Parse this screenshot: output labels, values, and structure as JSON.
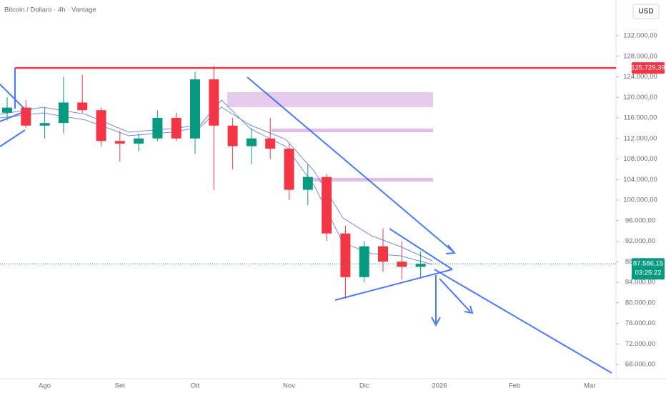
{
  "chart_data": {
    "type": "candlestick",
    "title": "Bitcoin / Dollaro · 4h · Vantage",
    "currency": "USD",
    "categories": [
      null,
      null,
      "Ago",
      null,
      null,
      null,
      "Set",
      null,
      null,
      null,
      "Ott",
      null,
      null,
      null,
      null,
      "Nov",
      null,
      null,
      null,
      "Dic",
      null,
      null,
      null,
      "2026",
      null,
      null,
      null,
      "Feb",
      null,
      null,
      null,
      "Mar",
      null
    ],
    "open": [
      117000,
      118000,
      114500,
      115000,
      119000,
      117500,
      111500,
      111000,
      112000,
      116000,
      112000,
      123500,
      114500,
      110500,
      112000,
      110000,
      102000,
      104500,
      93500,
      85000,
      91000,
      88000,
      87000,
      null,
      null,
      null,
      null,
      null,
      null,
      null,
      null,
      null,
      null
    ],
    "high": [
      120000,
      119500,
      118000,
      124000,
      124400,
      118000,
      113500,
      113000,
      117500,
      117000,
      125000,
      126200,
      116000,
      114000,
      116000,
      111000,
      107000,
      105000,
      95000,
      92000,
      94500,
      92000,
      90000,
      null,
      null,
      null,
      null,
      null,
      null,
      null,
      null,
      null,
      null
    ],
    "low": [
      115500,
      114000,
      112000,
      113000,
      117000,
      110500,
      107500,
      109500,
      111500,
      111500,
      109000,
      102000,
      106000,
      107000,
      108000,
      100000,
      99000,
      92000,
      80800,
      84000,
      86000,
      84500,
      85000,
      null,
      null,
      null,
      null,
      null,
      null,
      null,
      null,
      null,
      null
    ],
    "close": [
      118000,
      114500,
      115000,
      119000,
      117500,
      111500,
      111000,
      112000,
      116000,
      112000,
      123500,
      114500,
      110500,
      112000,
      110000,
      102000,
      104500,
      93500,
      85000,
      91000,
      88000,
      87000,
      87586.15,
      null,
      null,
      null,
      null,
      null,
      null,
      null,
      null,
      null,
      null
    ],
    "up_color": "#089981",
    "down_color": "#f23645",
    "ylim": [
      65217,
      138957
    ],
    "yticks": [
      {
        "value": 68000,
        "label": "68.000,00"
      },
      {
        "value": 72000,
        "label": "72.000,00"
      },
      {
        "value": 76000,
        "label": "76.000,00"
      },
      {
        "value": 80000,
        "label": "80.000,00"
      },
      {
        "value": 84000,
        "label": "84.000,00"
      },
      {
        "value": 88000,
        "label": "88.000,00"
      },
      {
        "value": 92000,
        "label": "92.000,00"
      },
      {
        "value": 96000,
        "label": "96.000,00"
      },
      {
        "value": 100000,
        "label": "100.000,00"
      },
      {
        "value": 104000,
        "label": "104.000,00"
      },
      {
        "value": 108000,
        "label": "108.000,00"
      },
      {
        "value": 112000,
        "label": "112.000,00"
      },
      {
        "value": 116000,
        "label": "116.000,00"
      },
      {
        "value": 120000,
        "label": "120.000,00"
      },
      {
        "value": 124000,
        "label": "124.000,00"
      },
      {
        "value": 128000,
        "label": "128.000,00"
      },
      {
        "value": 132000,
        "label": "132.000,00"
      }
    ],
    "hline": {
      "value": 125729.39,
      "label": "125.729,39",
      "color": "#f23645"
    },
    "price_label": {
      "value": 87586.15,
      "label": "87.586,15",
      "countdown": "03:25:22",
      "color": "#089981"
    }
  }
}
